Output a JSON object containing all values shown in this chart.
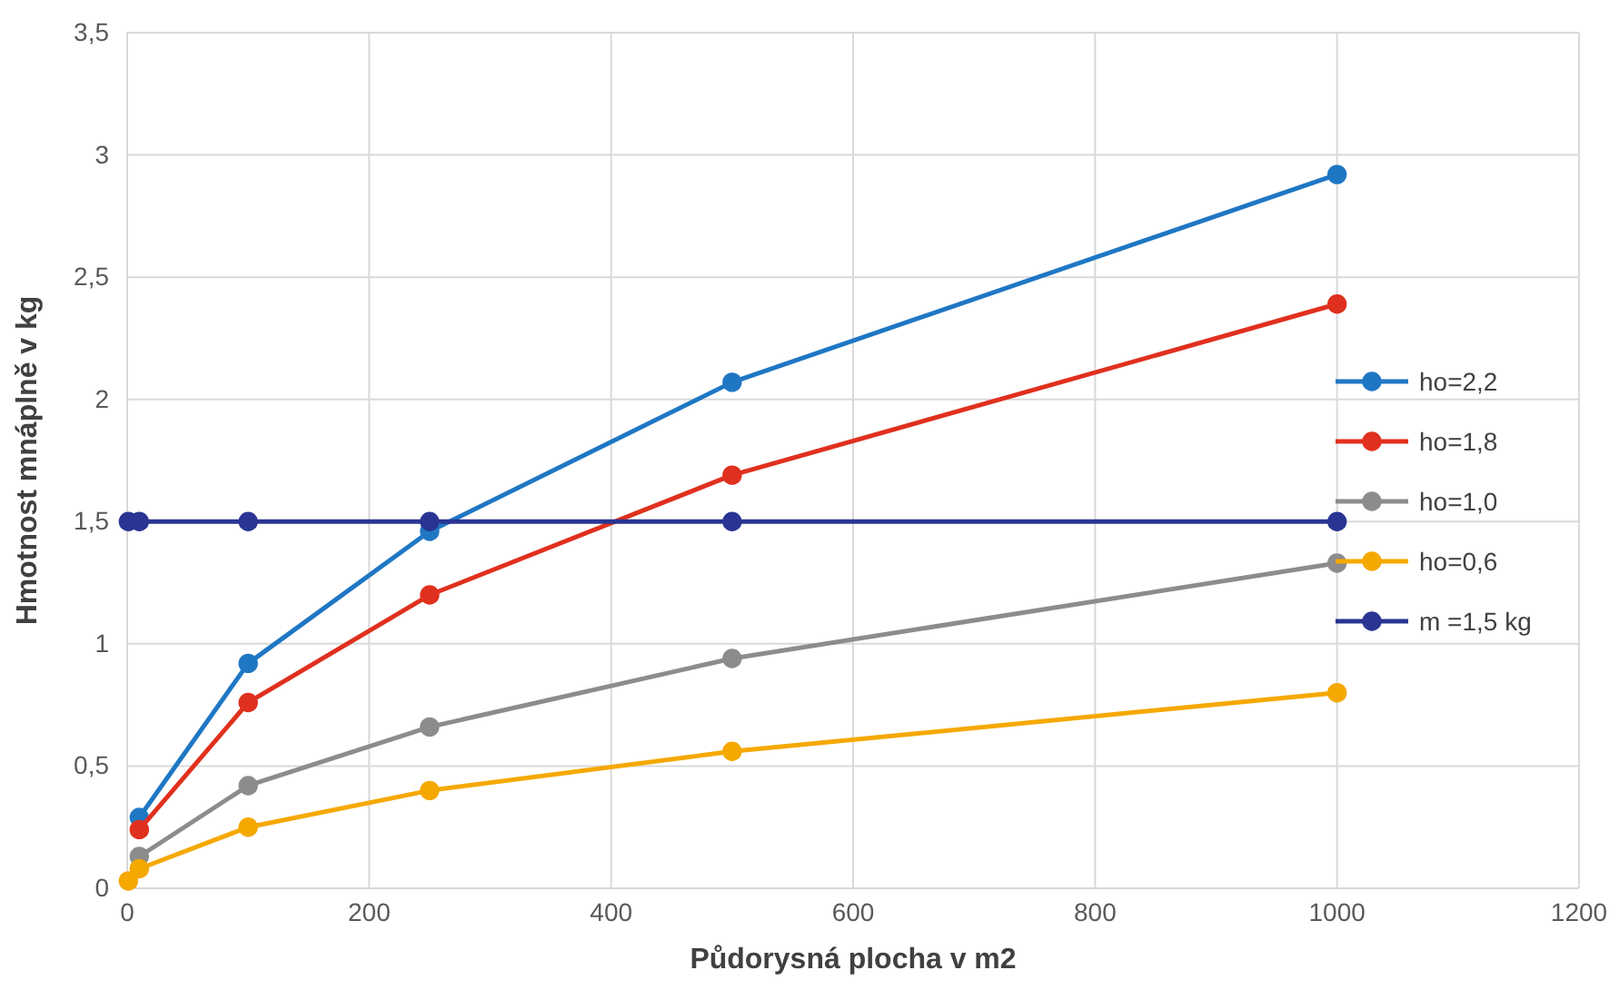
{
  "chart_data": {
    "type": "line",
    "xlabel": "Půdorysná plocha v m2",
    "ylabel": "Hmotnost mnáplně v kg",
    "x": [
      1,
      10,
      100,
      250,
      500,
      1000
    ],
    "series": [
      {
        "name": "ho=2,2",
        "color": "#1f77c4",
        "values": [
          null,
          0.29,
          0.92,
          1.46,
          2.07,
          2.92
        ]
      },
      {
        "name": "ho=1,8",
        "color": "#e0301e",
        "values": [
          null,
          0.24,
          0.76,
          1.2,
          1.69,
          2.39
        ]
      },
      {
        "name": "ho=1,0",
        "color": "#8c8c8c",
        "values": [
          null,
          0.13,
          0.42,
          0.66,
          0.94,
          1.33
        ]
      },
      {
        "name": "ho=0,6",
        "color": "#f5a800",
        "values": [
          0.03,
          0.08,
          0.25,
          0.4,
          0.56,
          0.8
        ]
      },
      {
        "name": "m =1,5 kg",
        "color": "#2a3593",
        "values": [
          1.5,
          1.5,
          1.5,
          1.5,
          1.5,
          1.5
        ]
      }
    ],
    "xlim": [
      0,
      1200
    ],
    "xticks": [
      0,
      200,
      400,
      600,
      800,
      1000,
      1200
    ],
    "ylim": [
      0,
      3.5
    ],
    "yticks": [
      {
        "value": 0,
        "label": "0"
      },
      {
        "value": 0.5,
        "label": "0,5"
      },
      {
        "value": 1,
        "label": "1"
      },
      {
        "value": 1.5,
        "label": "1,5"
      },
      {
        "value": 2,
        "label": "2"
      },
      {
        "value": 2.5,
        "label": "2,5"
      },
      {
        "value": 3,
        "label": "3"
      },
      {
        "value": 3.5,
        "label": "3,5"
      }
    ],
    "grid": true,
    "legend": "right",
    "marker": "circle",
    "line_style": "solid"
  }
}
